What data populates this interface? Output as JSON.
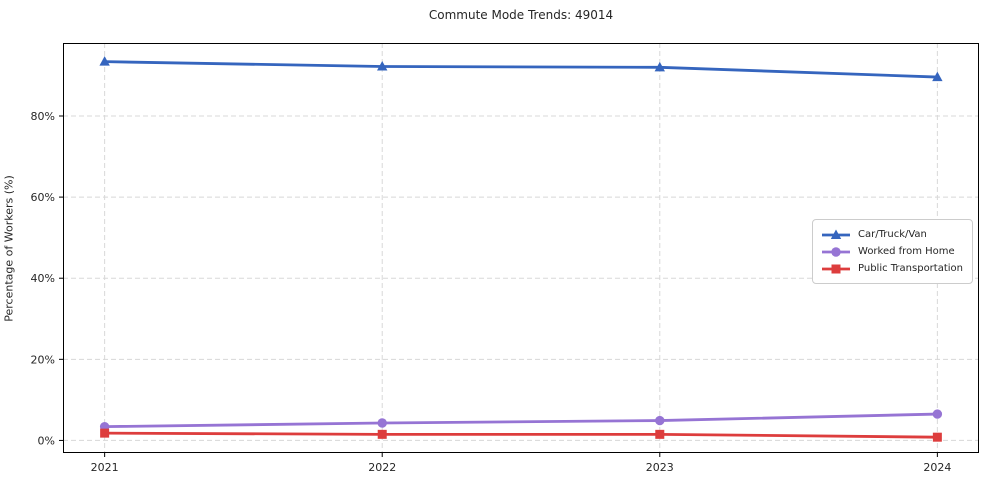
{
  "chart_data": {
    "type": "line",
    "title": "Commute Mode Trends: 49014",
    "xlabel": "",
    "ylabel": "Percentage of Workers (%)",
    "x": [
      2021,
      2022,
      2023,
      2024
    ],
    "x_tick_labels": [
      "2021",
      "2022",
      "2023",
      "2024"
    ],
    "xlim": [
      2020.85,
      2024.15
    ],
    "ylim": [
      -3.1,
      98.0
    ],
    "yticks": [
      0,
      20,
      40,
      60,
      80
    ],
    "ytick_labels": [
      "0%",
      "20%",
      "40%",
      "60%",
      "80%"
    ],
    "grid": true,
    "grid_style": "dashed",
    "grid_color": "#d8d8d8",
    "spine_color": "#000000",
    "legend_position": "center-right",
    "series": [
      {
        "name": "Car/Truck/Van",
        "color": "#3565be",
        "marker": "triangle",
        "values": [
          93.4,
          92.2,
          92.0,
          89.6
        ]
      },
      {
        "name": "Worked from Home",
        "color": "#9674d4",
        "marker": "circle",
        "values": [
          3.4,
          4.3,
          4.9,
          6.5
        ]
      },
      {
        "name": "Public Transportation",
        "color": "#dd3d3d",
        "marker": "square",
        "values": [
          1.8,
          1.5,
          1.5,
          0.8
        ]
      }
    ]
  }
}
